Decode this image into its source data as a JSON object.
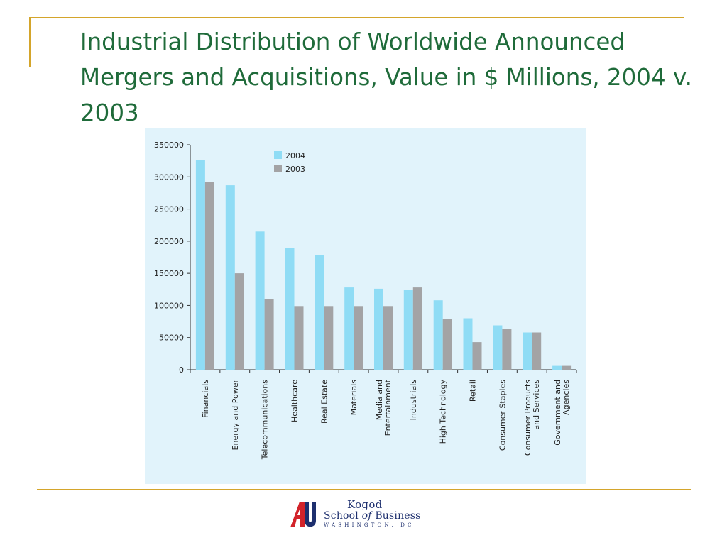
{
  "slide": {
    "title": "Industrial Distribution of Worldwide Announced Mergers and Acquisitions, Value in $ Millions, 2004 v. 2003"
  },
  "colors": {
    "accent_gold": "#d4a52b",
    "title_green": "#1f6b3a",
    "panel_bg": "#e1f3fb",
    "series_2004": "#8fdcf5",
    "series_2003": "#a3a3a5",
    "logo_blue": "#1d2f6e",
    "logo_red": "#d2232a"
  },
  "logo": {
    "line1": "Kogod",
    "line2_a": "School",
    "line2_of": "of",
    "line2_b": "Business",
    "line3": "WASHINGTON, DC",
    "mark_icon": "american-university-au-icon"
  },
  "chart_data": {
    "type": "bar",
    "title": "",
    "xlabel": "",
    "ylabel": "",
    "ylim": [
      0,
      350000
    ],
    "yticks": [
      "350000",
      "300000",
      "250000",
      "200000",
      "150000",
      "100000",
      "50000",
      "0"
    ],
    "grid": false,
    "legend_position": "top",
    "categories": [
      "Financials",
      "Energy and Power",
      "Telecommunications",
      "Healthcare",
      "Real Estate",
      "Materials",
      "Media and Entertainment",
      "Industrials",
      "High Technology",
      "Retail",
      "Consumer Staples",
      "Consumer Products and Services",
      "Government and Agencies"
    ],
    "category_label_lines": [
      [
        "Financials"
      ],
      [
        "Energy and Power"
      ],
      [
        "Telecommunications"
      ],
      [
        "Healthcare"
      ],
      [
        "Real Estate"
      ],
      [
        "Materials"
      ],
      [
        "Media and",
        "Entertainment"
      ],
      [
        "Industrials"
      ],
      [
        "High Technology"
      ],
      [
        "Retail"
      ],
      [
        "Consumer Staples"
      ],
      [
        "Consumer Products",
        "and Services"
      ],
      [
        "Government and",
        "Agencies"
      ]
    ],
    "series": [
      {
        "name": "2004",
        "color": "#8fdcf5",
        "values": [
          326000,
          287000,
          215000,
          189000,
          178000,
          128000,
          126000,
          124000,
          108000,
          80000,
          69000,
          58000,
          6000
        ]
      },
      {
        "name": "2003",
        "color": "#a3a3a5",
        "values": [
          292000,
          150000,
          110000,
          99000,
          99000,
          99000,
          99000,
          128000,
          79000,
          43000,
          64000,
          58000,
          6000
        ]
      }
    ]
  }
}
